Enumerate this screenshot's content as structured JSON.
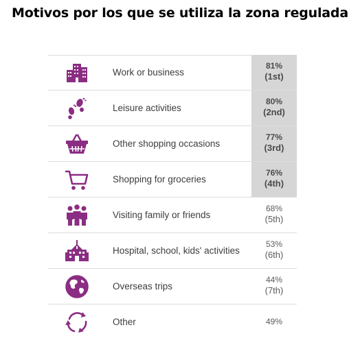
{
  "title": "Motivos por los que se utiliza la zona regulada",
  "colors": {
    "icon": "#8b2d83",
    "highlight": "#d6d6d6",
    "text": "#3c3c3c"
  },
  "chart_data": {
    "type": "table",
    "columns": [
      "icon",
      "reason",
      "value"
    ],
    "rows": [
      {
        "icon": "buildings-icon",
        "label": "Work or business",
        "value": "81%",
        "rank": "(1st)",
        "highlight": true
      },
      {
        "icon": "footprints-icon",
        "label": "Leisure activities",
        "value": "80%",
        "rank": "(2nd)",
        "highlight": true
      },
      {
        "icon": "shopping-basket-icon",
        "label": "Other shopping occasions",
        "value": "77%",
        "rank": "(3rd)",
        "highlight": true
      },
      {
        "icon": "shopping-cart-icon",
        "label": "Shopping for groceries",
        "value": "76%",
        "rank": "(4th)",
        "highlight": true
      },
      {
        "icon": "people-icon",
        "label": "Visiting family or friends",
        "value": "68%",
        "rank": "(5th)",
        "highlight": false
      },
      {
        "icon": "hospital-icon",
        "label": "Hospital, school, kids' activities",
        "value": "53%",
        "rank": "(6th)",
        "highlight": false
      },
      {
        "icon": "globe-icon",
        "label": "Overseas trips",
        "value": "44%",
        "rank": "(7th)",
        "highlight": false
      },
      {
        "icon": "recycle-arrows-icon",
        "label": "Other",
        "value": "49%",
        "rank": "",
        "highlight": false
      }
    ]
  }
}
